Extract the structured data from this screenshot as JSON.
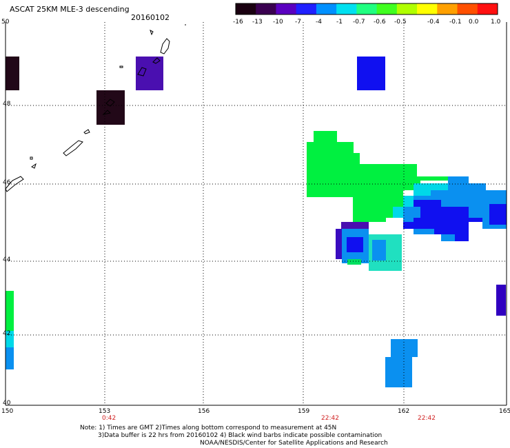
{
  "header": {
    "title": "ASCAT 25KM MLE-3 descending",
    "date": "20160102"
  },
  "colorbar": {
    "ticks": [
      "-16",
      "-13",
      "-10",
      "-7",
      "-4",
      "-1",
      "-0.7",
      "-0.6",
      "-0.5",
      "-0.4",
      "-0.1",
      "0.0",
      "1.0"
    ],
    "colors": [
      "#1a0010",
      "#3a0050",
      "#5a00c0",
      "#2020ff",
      "#0090ff",
      "#00e0f0",
      "#20ff80",
      "#40ff20",
      "#b0ff00",
      "#ffff00",
      "#ffa000",
      "#ff5000",
      "#ff1010"
    ]
  },
  "map": {
    "lat_labels": [
      "50",
      "48",
      "46",
      "44",
      "42",
      "40"
    ],
    "lon_labels": [
      "150",
      "153",
      "156",
      "159",
      "162",
      "165"
    ],
    "time_labels": [
      "0:42",
      "22:42",
      "22:42"
    ],
    "cell_colors": {
      "dark_purple": "#220818",
      "purple": "#4a0fb0",
      "indigo": "#3000a8",
      "blue": "#1010f0",
      "light_blue": "#0a90f0",
      "cyan": "#00d8e8",
      "aqua": "#20e0c0",
      "green": "#00f040"
    }
  },
  "notes": {
    "line1": "Note: 1) Times are GMT 2)Times along bottom correspond to measurement at 45N",
    "line2": "3)Data buffer is 22 hrs from 20160102 4) Black wind barbs indicate possible contamination",
    "line3": "NOAA/NESDIS/Center for Satellite Applications and Research"
  }
}
